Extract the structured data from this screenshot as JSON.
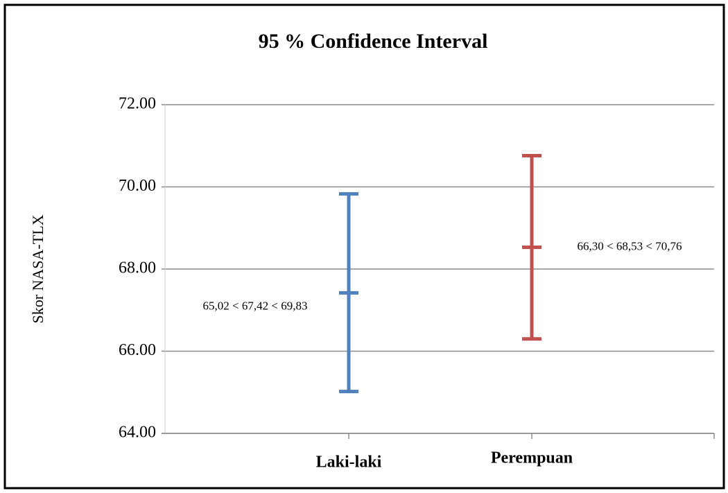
{
  "chart_data": {
    "type": "confidence-interval",
    "title": "95 % Confidence Interval",
    "y_label": "Skor NASA-TLX",
    "categories": [
      "Laki-laki",
      "Perempuan"
    ],
    "lower": [
      65.02,
      66.3
    ],
    "values": [
      67.42,
      68.53
    ],
    "upper": [
      69.83,
      70.76
    ],
    "annotations": [
      "65,02 < 67,42 < 69,83",
      "66,30 < 68,53 < 70,76"
    ],
    "colors": [
      "#4f81bd",
      "#c0504d"
    ],
    "ylim": [
      64,
      72
    ],
    "yticks": [
      {
        "value": 64,
        "label": "64.00"
      },
      {
        "value": 66,
        "label": "66.00"
      },
      {
        "value": 68,
        "label": "68.00"
      },
      {
        "value": 70,
        "label": "70.00"
      },
      {
        "value": 72,
        "label": "72.00"
      }
    ],
    "grid": true
  }
}
